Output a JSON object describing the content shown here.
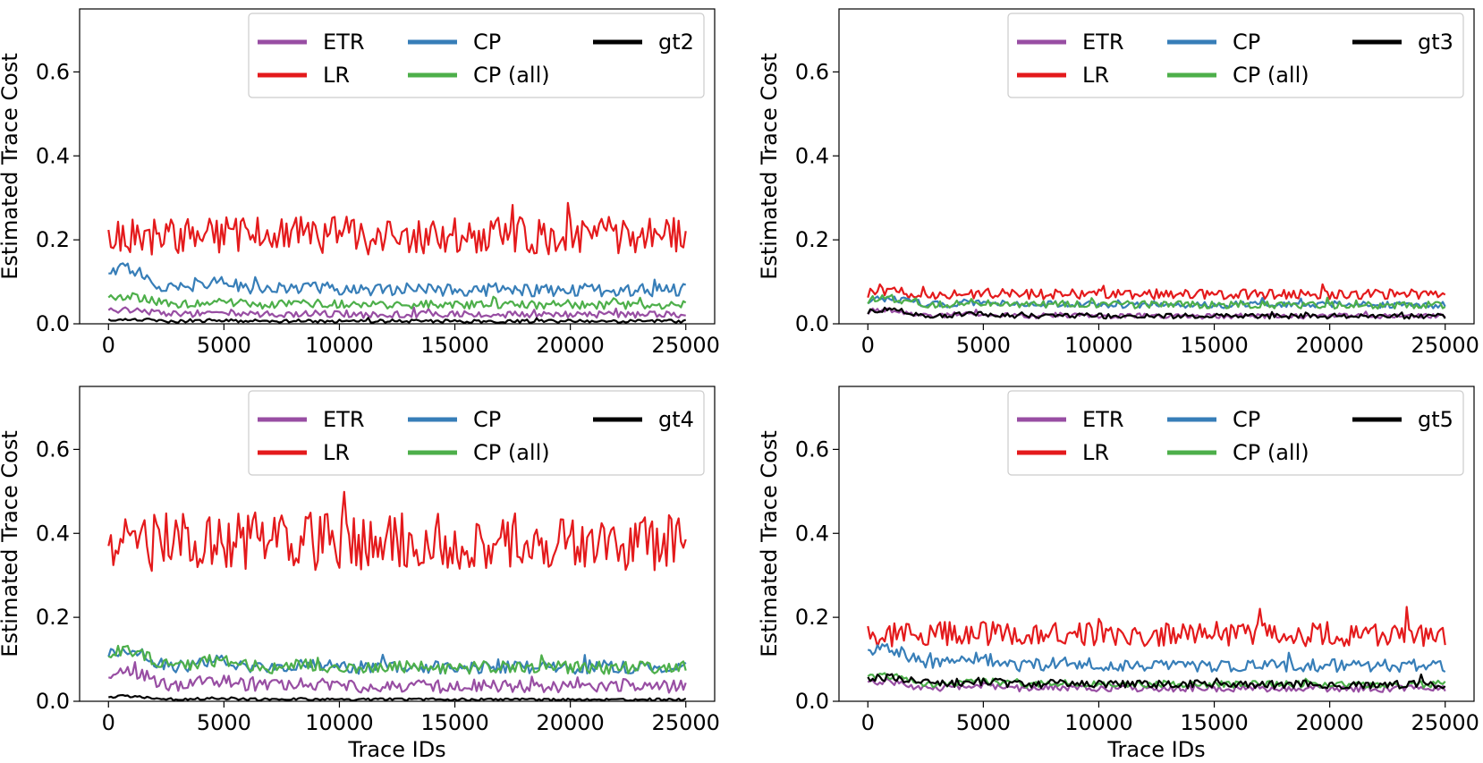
{
  "chart_data": [
    {
      "type": "line",
      "xlabel": "",
      "ylabel": "Estimated Trace Cost",
      "xlim": [
        -1250,
        26250
      ],
      "ylim": [
        0,
        0.75
      ],
      "xticks": [
        "0",
        "5000",
        "10000",
        "15000",
        "20000",
        "25000"
      ],
      "yticks": [
        "0.0",
        "0.2",
        "0.4",
        "0.6"
      ],
      "legend_placement": "top-right",
      "series": [
        {
          "name": "ETR",
          "color": "#984ea3",
          "mean": 0.022,
          "amp": 0.008,
          "start_bump": 0.012
        },
        {
          "name": "LR",
          "color": "#e41a1c",
          "mean": 0.21,
          "amp": 0.045,
          "start_bump": 0.0
        },
        {
          "name": "CP",
          "color": "#377eb8",
          "mean": 0.08,
          "amp": 0.015,
          "start_bump": 0.05
        },
        {
          "name": "CP (all)",
          "color": "#4daf4a",
          "mean": 0.045,
          "amp": 0.01,
          "start_bump": 0.02
        },
        {
          "name": "gt2",
          "color": "#000000",
          "mean": 0.006,
          "amp": 0.004,
          "start_bump": 0.005
        }
      ],
      "x_range": [
        0,
        25000
      ]
    },
    {
      "type": "line",
      "xlabel": "",
      "ylabel": "Estimated Trace Cost",
      "xlim": [
        -1250,
        26250
      ],
      "ylim": [
        0,
        0.75
      ],
      "xticks": [
        "0",
        "5000",
        "10000",
        "15000",
        "20000",
        "25000"
      ],
      "yticks": [
        "0.0",
        "0.2",
        "0.4",
        "0.6"
      ],
      "legend_placement": "top-right",
      "series": [
        {
          "name": "ETR",
          "color": "#984ea3",
          "mean": 0.018,
          "amp": 0.006,
          "start_bump": 0.015
        },
        {
          "name": "LR",
          "color": "#e41a1c",
          "mean": 0.07,
          "amp": 0.012,
          "start_bump": 0.005
        },
        {
          "name": "CP",
          "color": "#377eb8",
          "mean": 0.045,
          "amp": 0.008,
          "start_bump": 0.015
        },
        {
          "name": "CP (all)",
          "color": "#4daf4a",
          "mean": 0.045,
          "amp": 0.009,
          "start_bump": 0.015
        },
        {
          "name": "gt3",
          "color": "#000000",
          "mean": 0.018,
          "amp": 0.006,
          "start_bump": 0.015
        }
      ],
      "x_range": [
        0,
        25000
      ]
    },
    {
      "type": "line",
      "xlabel": "Trace IDs",
      "ylabel": "Estimated Trace Cost",
      "xlim": [
        -1250,
        26250
      ],
      "ylim": [
        0,
        0.75
      ],
      "xticks": [
        "0",
        "5000",
        "10000",
        "15000",
        "20000",
        "25000"
      ],
      "yticks": [
        "0.0",
        "0.2",
        "0.4",
        "0.6"
      ],
      "legend_placement": "top-right",
      "series": [
        {
          "name": "ETR",
          "color": "#984ea3",
          "mean": 0.035,
          "amp": 0.015,
          "start_bump": 0.035
        },
        {
          "name": "LR",
          "color": "#e41a1c",
          "mean": 0.38,
          "amp": 0.07,
          "start_bump": 0.0
        },
        {
          "name": "CP",
          "color": "#377eb8",
          "mean": 0.08,
          "amp": 0.015,
          "start_bump": 0.04
        },
        {
          "name": "CP (all)",
          "color": "#4daf4a",
          "mean": 0.08,
          "amp": 0.015,
          "start_bump": 0.04
        },
        {
          "name": "gt4",
          "color": "#000000",
          "mean": 0.004,
          "amp": 0.003,
          "start_bump": 0.008
        }
      ],
      "x_range": [
        0,
        25000
      ]
    },
    {
      "type": "line",
      "xlabel": "Trace IDs",
      "ylabel": "Estimated Trace Cost",
      "xlim": [
        -1250,
        26250
      ],
      "ylim": [
        0,
        0.75
      ],
      "xticks": [
        "0",
        "5000",
        "10000",
        "15000",
        "20000",
        "25000"
      ],
      "yticks": [
        "0.0",
        "0.2",
        "0.4",
        "0.6"
      ],
      "legend_placement": "top-right",
      "series": [
        {
          "name": "ETR",
          "color": "#984ea3",
          "mean": 0.03,
          "amp": 0.008,
          "start_bump": 0.015
        },
        {
          "name": "LR",
          "color": "#e41a1c",
          "mean": 0.16,
          "amp": 0.03,
          "start_bump": 0.0
        },
        {
          "name": "CP",
          "color": "#377eb8",
          "mean": 0.085,
          "amp": 0.015,
          "start_bump": 0.04
        },
        {
          "name": "CP (all)",
          "color": "#4daf4a",
          "mean": 0.04,
          "amp": 0.008,
          "start_bump": 0.02
        },
        {
          "name": "gt5",
          "color": "#000000",
          "mean": 0.04,
          "amp": 0.01,
          "start_bump": 0.015
        }
      ],
      "x_range": [
        0,
        25000
      ]
    }
  ]
}
